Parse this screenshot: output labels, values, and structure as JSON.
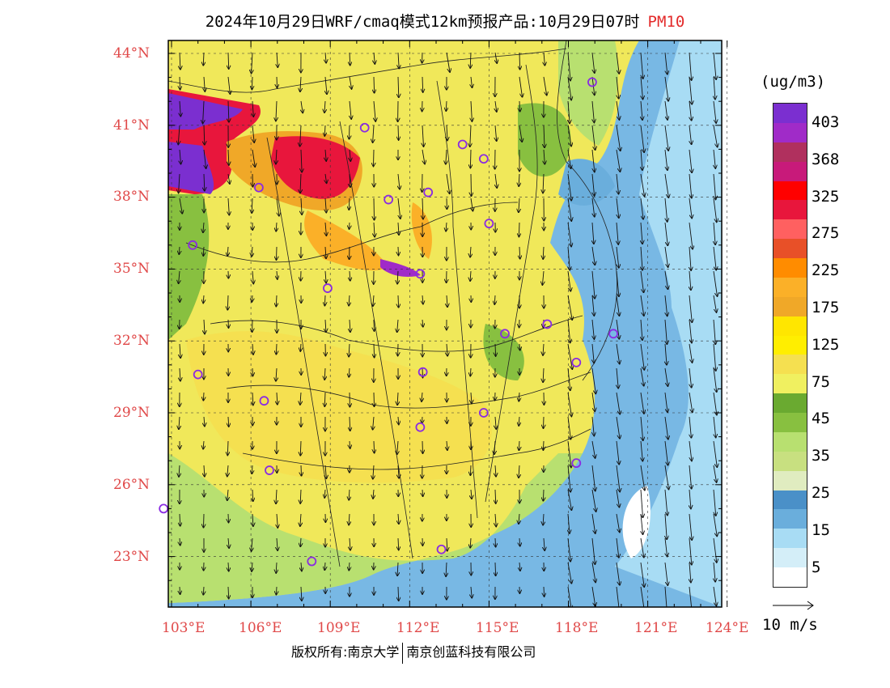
{
  "title": {
    "main": "2024年10月29日WRF/cmaq模式12km预报产品:10月29日07时",
    "species": "PM10"
  },
  "axes": {
    "latitudes": [
      "44°N",
      "41°N",
      "38°N",
      "35°N",
      "32°N",
      "29°N",
      "26°N",
      "23°N"
    ],
    "longitudes": [
      "103°E",
      "106°E",
      "109°E",
      "112°E",
      "115°E",
      "118°E",
      "121°E",
      "124°E"
    ]
  },
  "legend": {
    "unit": "(ug/m3)",
    "labels": [
      "403",
      "368",
      "325",
      "275",
      "225",
      "175",
      "125",
      "75",
      "45",
      "35",
      "25",
      "15",
      "5"
    ],
    "colors": [
      "#7b2fd0",
      "#a02bc8",
      "#b0305e",
      "#c81a7a",
      "#ff0000",
      "#e8163c",
      "#ff6060",
      "#e85028",
      "#ff8c00",
      "#fbb028",
      "#f0a828",
      "#ffe600",
      "#ffee00",
      "#f5e050",
      "#f0f060",
      "#6aaa30",
      "#88c040",
      "#b8e070",
      "#c8e080",
      "#e0ecc0",
      "#4a90c8",
      "#6aaedc",
      "#a8dcf4",
      "#d4eef8",
      "#ffffff"
    ],
    "colors_note": "top to bottom"
  },
  "wind_scale": {
    "label": "10 m/s"
  },
  "copyright": {
    "left": "版权所有:南京大学",
    "right": "南京创蓝科技有限公司"
  },
  "colors": {
    "axis_label": "#e04848",
    "species": "#e32b2b"
  },
  "cities": [
    {
      "lat": 42.8,
      "lon": 118.9
    },
    {
      "lat": 40.9,
      "lon": 110.3
    },
    {
      "lat": 40.2,
      "lon": 114.0
    },
    {
      "lat": 39.6,
      "lon": 114.8
    },
    {
      "lat": 38.4,
      "lon": 106.3
    },
    {
      "lat": 38.2,
      "lon": 112.7
    },
    {
      "lat": 37.9,
      "lon": 111.2
    },
    {
      "lat": 36.9,
      "lon": 115.0
    },
    {
      "lat": 36.0,
      "lon": 103.8
    },
    {
      "lat": 34.8,
      "lon": 112.4
    },
    {
      "lat": 34.2,
      "lon": 108.9
    },
    {
      "lat": 32.7,
      "lon": 117.2
    },
    {
      "lat": 32.3,
      "lon": 119.7
    },
    {
      "lat": 32.3,
      "lon": 115.6
    },
    {
      "lat": 31.1,
      "lon": 118.3
    },
    {
      "lat": 30.6,
      "lon": 104.0
    },
    {
      "lat": 30.7,
      "lon": 112.5
    },
    {
      "lat": 29.5,
      "lon": 106.5
    },
    {
      "lat": 29.0,
      "lon": 114.8
    },
    {
      "lat": 28.4,
      "lon": 112.4
    },
    {
      "lat": 26.9,
      "lon": 118.3
    },
    {
      "lat": 26.6,
      "lon": 106.7
    },
    {
      "lat": 25.0,
      "lon": 102.7
    },
    {
      "lat": 23.3,
      "lon": 113.2
    },
    {
      "lat": 22.8,
      "lon": 108.3
    }
  ]
}
